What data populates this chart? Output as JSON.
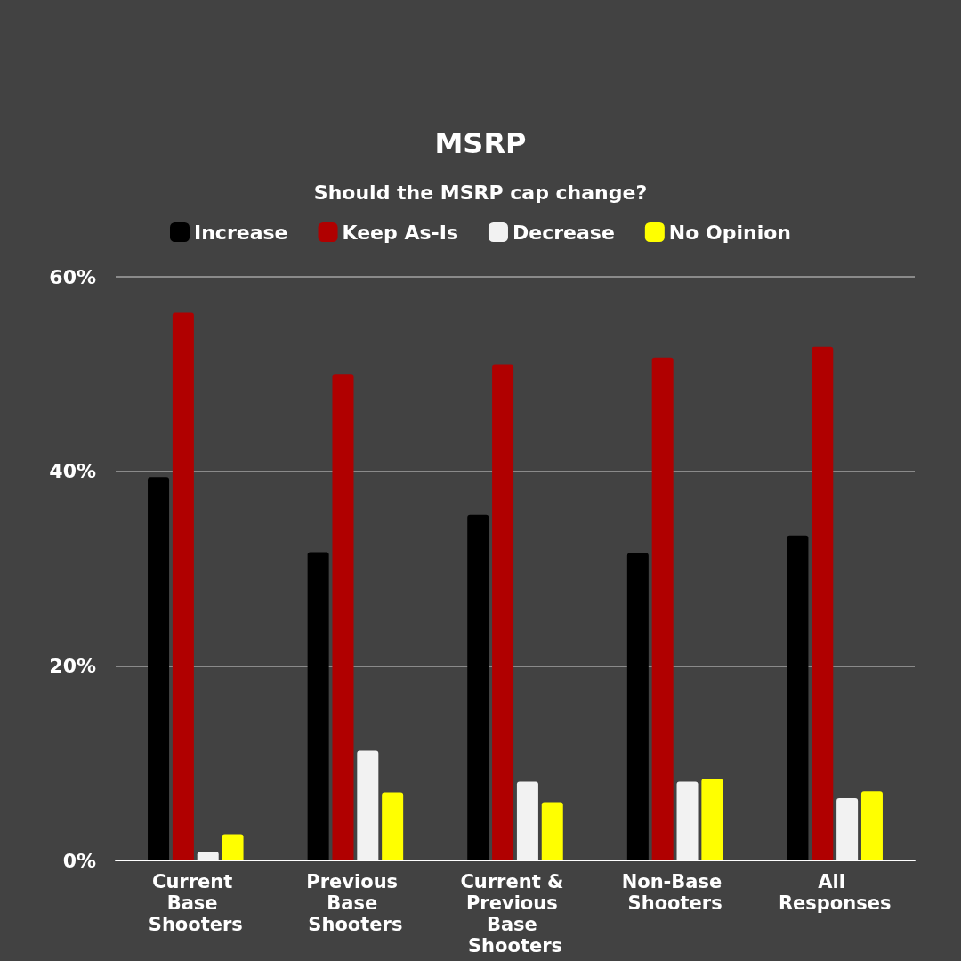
{
  "chart_data": {
    "type": "bar",
    "title": "MSRP",
    "subtitle": "Should the MSRP cap change?",
    "categories": [
      "Current Base Shooters",
      "Previous Base Shooters",
      "Current & Previous Base Shooters",
      "Non-Base Shooters",
      "All Responses"
    ],
    "series": [
      {
        "name": "Increase",
        "color": "#000000",
        "values": [
          39.4,
          31.7,
          35.5,
          31.6,
          33.4
        ]
      },
      {
        "name": "Keep As-Is",
        "color": "#b00000",
        "values": [
          56.3,
          50.0,
          51.0,
          51.7,
          52.8
        ]
      },
      {
        "name": "Decrease",
        "color": "#f2f2f2",
        "values": [
          0.9,
          11.3,
          8.1,
          8.1,
          6.4
        ]
      },
      {
        "name": "No Opinion",
        "color": "#ffff00",
        "values": [
          2.7,
          7.0,
          6.0,
          8.4,
          7.1
        ]
      }
    ],
    "ylim": [
      0,
      60
    ],
    "yticks": [
      {
        "value": 0,
        "label": "0%"
      },
      {
        "value": 20,
        "label": "20%"
      },
      {
        "value": 40,
        "label": "40%"
      },
      {
        "value": 60,
        "label": "60%"
      }
    ],
    "grid": "y",
    "legend": "top"
  }
}
